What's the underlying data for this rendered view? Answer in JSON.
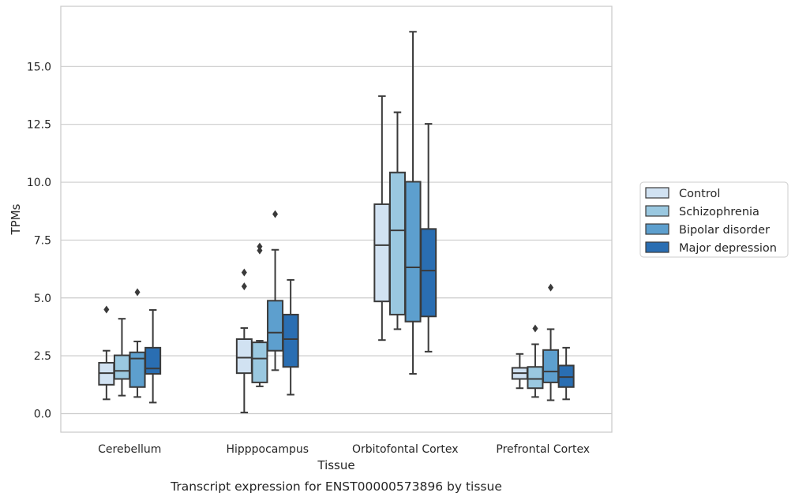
{
  "chart_data": {
    "type": "boxplot",
    "caption": "Transcript expression for ENST00000573896 by tissue",
    "xlabel": "Tissue",
    "ylabel": "TPMs",
    "ylim": [
      -0.8,
      17.6
    ],
    "yticks": [
      "0.0",
      "2.5",
      "5.0",
      "7.5",
      "10.0",
      "12.5",
      "15.0"
    ],
    "ytick_values": [
      0,
      2.5,
      5,
      7.5,
      10,
      12.5,
      15
    ],
    "grid": "horizontal",
    "legend_position": "right",
    "categories": [
      "Cerebellum",
      "Hipppocampus",
      "Orbitofontal Cortex",
      "Prefrontal Cortex"
    ],
    "series": [
      {
        "name": "Control",
        "color": "#d1e2f2",
        "boxes": [
          {
            "whislo": 0.62,
            "q1": 1.25,
            "med": 1.75,
            "q3": 2.2,
            "whishi": 2.72,
            "fliers": [
              4.5
            ]
          },
          {
            "whislo": 0.05,
            "q1": 1.75,
            "med": 2.42,
            "q3": 3.22,
            "whishi": 3.7,
            "fliers": [
              5.5,
              6.1
            ]
          },
          {
            "whislo": 3.18,
            "q1": 4.85,
            "med": 7.28,
            "q3": 9.05,
            "whishi": 13.72,
            "fliers": []
          },
          {
            "whislo": 1.1,
            "q1": 1.5,
            "med": 1.75,
            "q3": 1.98,
            "whishi": 2.58,
            "fliers": []
          }
        ]
      },
      {
        "name": "Schizophrenia",
        "color": "#9ac8e0",
        "boxes": [
          {
            "whislo": 0.78,
            "q1": 1.5,
            "med": 1.85,
            "q3": 2.52,
            "whishi": 4.1,
            "fliers": []
          },
          {
            "whislo": 1.18,
            "q1": 1.35,
            "med": 2.38,
            "q3": 3.08,
            "whishi": 3.15,
            "fliers": [
              7.05,
              7.22
            ]
          },
          {
            "whislo": 3.65,
            "q1": 4.28,
            "med": 7.92,
            "q3": 10.42,
            "whishi": 13.02,
            "fliers": []
          },
          {
            "whislo": 0.72,
            "q1": 1.1,
            "med": 1.5,
            "q3": 2.02,
            "whishi": 3.0,
            "fliers": [
              3.68
            ]
          }
        ]
      },
      {
        "name": "Bipolar disorder",
        "color": "#5d9fce",
        "boxes": [
          {
            "whislo": 0.72,
            "q1": 1.15,
            "med": 2.38,
            "q3": 2.65,
            "whishi": 3.12,
            "fliers": [
              5.25
            ]
          },
          {
            "whislo": 1.88,
            "q1": 2.72,
            "med": 3.5,
            "q3": 4.88,
            "whishi": 7.08,
            "fliers": [
              8.62
            ]
          },
          {
            "whislo": 1.72,
            "q1": 3.98,
            "med": 6.32,
            "q3": 10.02,
            "whishi": 16.5,
            "fliers": []
          },
          {
            "whislo": 0.58,
            "q1": 1.35,
            "med": 1.82,
            "q3": 2.75,
            "whishi": 3.65,
            "fliers": [
              5.45
            ]
          }
        ]
      },
      {
        "name": "Major depression",
        "color": "#2a6eb2",
        "boxes": [
          {
            "whislo": 0.48,
            "q1": 1.72,
            "med": 1.95,
            "q3": 2.85,
            "whishi": 4.48,
            "fliers": []
          },
          {
            "whislo": 0.82,
            "q1": 2.02,
            "med": 3.22,
            "q3": 4.28,
            "whishi": 5.78,
            "fliers": []
          },
          {
            "whislo": 2.68,
            "q1": 4.2,
            "med": 6.18,
            "q3": 7.98,
            "whishi": 12.52,
            "fliers": []
          },
          {
            "whislo": 0.62,
            "q1": 1.15,
            "med": 1.58,
            "q3": 2.08,
            "whishi": 2.85,
            "fliers": []
          }
        ]
      }
    ]
  }
}
